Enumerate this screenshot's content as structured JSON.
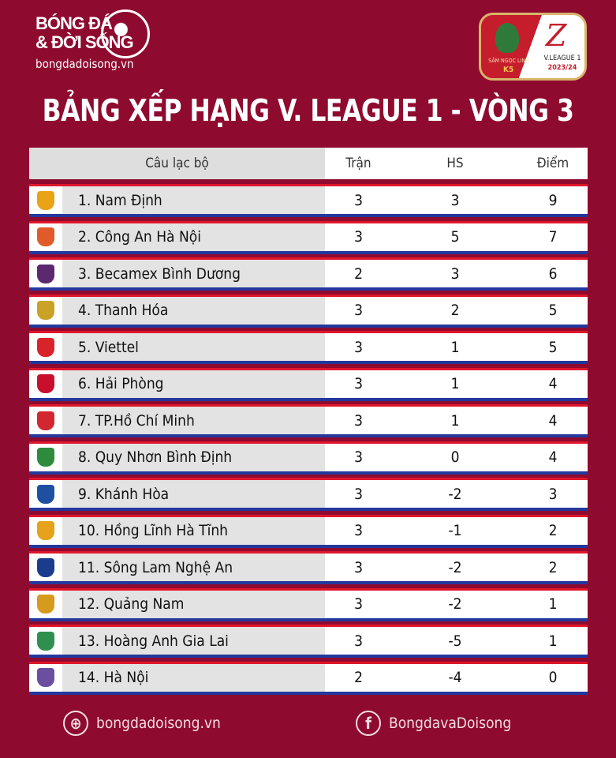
{
  "brand": {
    "line1": "BÓNG ĐÁ",
    "line2": "& ĐỜI SỐNG",
    "url": "bongdadoisong.vn"
  },
  "league_logo": {
    "sponsor": "SÂM NGỌC LINH",
    "sponsor2": "K5",
    "name": "V.LEAGUE 1",
    "season": "2023/24"
  },
  "title": "BẢNG XẾP HẠNG V. LEAGUE 1 - VÒNG 3",
  "table": {
    "headers": {
      "club": "Câu lạc bộ",
      "played": "Trận",
      "gd": "HS",
      "points": "Điểm"
    },
    "rows": [
      {
        "club": "1. Nam Định",
        "played": "3",
        "gd": "3",
        "points": "9",
        "color": "#e8a317"
      },
      {
        "club": "2. Công An Hà Nội",
        "played": "3",
        "gd": "5",
        "points": "7",
        "color": "#e05a2a"
      },
      {
        "club": "3. Becamex Bình Dương",
        "played": "2",
        "gd": "3",
        "points": "6",
        "color": "#5b2a6e"
      },
      {
        "club": "4. Thanh Hóa",
        "played": "3",
        "gd": "2",
        "points": "5",
        "color": "#c9a227"
      },
      {
        "club": "5. Viettel",
        "played": "3",
        "gd": "1",
        "points": "5",
        "color": "#d8232a"
      },
      {
        "club": "6. Hải Phòng",
        "played": "3",
        "gd": "1",
        "points": "4",
        "color": "#c8102e"
      },
      {
        "club": "7. TP.Hồ Chí Minh",
        "played": "3",
        "gd": "1",
        "points": "4",
        "color": "#d22630"
      },
      {
        "club": "8. Quy Nhơn Bình Định",
        "played": "3",
        "gd": "0",
        "points": "4",
        "color": "#2e8b3d"
      },
      {
        "club": "9. Khánh Hòa",
        "played": "3",
        "gd": "-2",
        "points": "3",
        "color": "#1f4fa0"
      },
      {
        "club": "10. Hồng Lĩnh Hà Tĩnh",
        "played": "3",
        "gd": "-1",
        "points": "2",
        "color": "#e6a21a"
      },
      {
        "club": "11. Sông Lam Nghệ An",
        "played": "3",
        "gd": "-2",
        "points": "2",
        "color": "#1b3c8c"
      },
      {
        "club": "12. Quảng Nam",
        "played": "3",
        "gd": "-2",
        "points": "1",
        "color": "#d69a1c"
      },
      {
        "club": "13. Hoàng Anh Gia Lai",
        "played": "3",
        "gd": "-5",
        "points": "1",
        "color": "#2f8f4e"
      },
      {
        "club": "14. Hà Nội",
        "played": "2",
        "gd": "-4",
        "points": "0",
        "color": "#6a4fa0"
      }
    ]
  },
  "footer": {
    "website": "bongdadoisong.vn",
    "facebook": "BongdavaDoisong"
  }
}
